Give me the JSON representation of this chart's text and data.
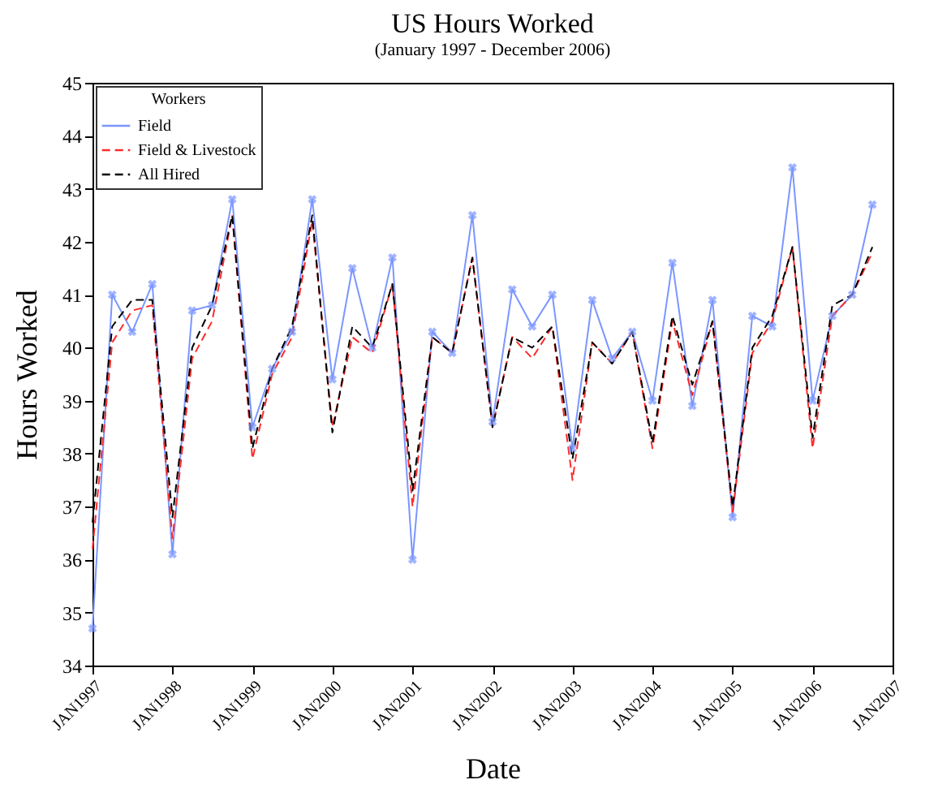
{
  "chart_data": {
    "type": "line",
    "title": "US Hours Worked",
    "subtitle": "(January 1997 - December 2006)",
    "xlabel": "Date",
    "ylabel": "Hours Worked",
    "legend_title": "Workers",
    "legend": "top left",
    "grid": false,
    "x": [
      "1997-01",
      "1997-04",
      "1997-07",
      "1997-10",
      "1998-01",
      "1998-04",
      "1998-07",
      "1998-10",
      "1999-01",
      "1999-04",
      "1999-07",
      "1999-10",
      "2000-01",
      "2000-04",
      "2000-07",
      "2000-10",
      "2001-01",
      "2001-04",
      "2001-07",
      "2001-10",
      "2002-01",
      "2002-04",
      "2002-07",
      "2002-10",
      "2003-01",
      "2003-04",
      "2003-07",
      "2003-10",
      "2004-01",
      "2004-04",
      "2004-07",
      "2004-10",
      "2005-01",
      "2005-04",
      "2005-07",
      "2005-10",
      "2006-01",
      "2006-04",
      "2006-07",
      "2006-10"
    ],
    "xlim": [
      "1997-01",
      "2007-01"
    ],
    "xticks": [
      {
        "value": "1997-01",
        "label": "JAN1997"
      },
      {
        "value": "1998-01",
        "label": "JAN1998"
      },
      {
        "value": "1999-01",
        "label": "JAN1999"
      },
      {
        "value": "2000-01",
        "label": "JAN2000"
      },
      {
        "value": "2001-01",
        "label": "JAN2001"
      },
      {
        "value": "2002-01",
        "label": "JAN2002"
      },
      {
        "value": "2003-01",
        "label": "JAN2003"
      },
      {
        "value": "2004-01",
        "label": "JAN2004"
      },
      {
        "value": "2005-01",
        "label": "JAN2005"
      },
      {
        "value": "2006-01",
        "label": "JAN2006"
      },
      {
        "value": "2007-01",
        "label": "JAN2007"
      }
    ],
    "ylim": [
      34,
      45
    ],
    "yticks": [
      34,
      35,
      36,
      37,
      38,
      39,
      40,
      41,
      42,
      43,
      44,
      45
    ],
    "series": [
      {
        "name": "Field",
        "color": "#7b96ff",
        "marker": "cross",
        "line_style": "solid",
        "values": [
          34.7,
          41.0,
          40.3,
          41.2,
          36.1,
          40.7,
          40.8,
          42.8,
          38.5,
          39.6,
          40.3,
          42.8,
          39.4,
          41.5,
          40.0,
          41.7,
          36.0,
          40.3,
          39.9,
          42.5,
          38.6,
          41.1,
          40.4,
          41.0,
          38.1,
          40.9,
          39.8,
          40.3,
          39.0,
          41.6,
          38.9,
          40.9,
          36.8,
          40.6,
          40.4,
          43.4,
          39.0,
          40.6,
          41.0,
          42.7
        ]
      },
      {
        "name": "Field & Livestock",
        "color": "#ff2a2a",
        "line_style": "dashed",
        "values": [
          36.2,
          40.1,
          40.7,
          40.8,
          36.4,
          39.8,
          40.5,
          42.5,
          37.9,
          39.5,
          40.2,
          42.4,
          38.5,
          40.2,
          39.9,
          41.2,
          37.0,
          40.2,
          39.9,
          41.7,
          38.5,
          40.2,
          39.8,
          40.4,
          37.5,
          40.1,
          39.7,
          40.3,
          38.1,
          40.5,
          39.1,
          40.5,
          36.9,
          39.9,
          40.5,
          41.9,
          38.1,
          40.6,
          41.0,
          41.8
        ]
      },
      {
        "name": "All Hired",
        "color": "#000000",
        "line_style": "dashed",
        "values": [
          36.7,
          40.4,
          40.9,
          40.9,
          36.8,
          40.0,
          40.8,
          42.5,
          38.1,
          39.6,
          40.4,
          42.5,
          38.4,
          40.4,
          40.0,
          41.2,
          37.3,
          40.2,
          39.9,
          41.7,
          38.5,
          40.2,
          40.0,
          40.4,
          37.9,
          40.1,
          39.7,
          40.3,
          38.2,
          40.6,
          39.3,
          40.5,
          37.0,
          40.0,
          40.6,
          41.9,
          38.3,
          40.8,
          41.0,
          41.9
        ]
      }
    ]
  }
}
